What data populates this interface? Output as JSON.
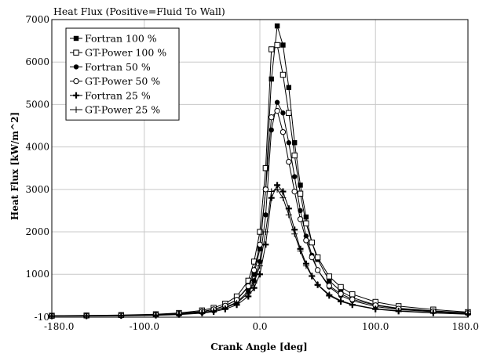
{
  "chart_data": {
    "type": "line",
    "title": "Heat Flux (Positive=Fluid To Wall)",
    "xlabel": "Crank Angle [deg]",
    "ylabel": "Heat Flux [kW/m^2]",
    "xlim": [
      -180,
      180
    ],
    "ylim": [
      -10,
      7000
    ],
    "x_ticks": [
      "-180.0",
      "-100.0",
      "0.0",
      "100.0",
      "180.0"
    ],
    "y_ticks": [
      "-10",
      "1000",
      "2000",
      "3000",
      "4000",
      "5000",
      "6000",
      "7000"
    ],
    "grid": true,
    "legend_position": "top-left",
    "series": [
      {
        "name": "Fortran 100 %",
        "marker": "filled-square",
        "x": [
          -180,
          -150,
          -120,
          -90,
          -70,
          -50,
          -40,
          -30,
          -20,
          -10,
          -5,
          0,
          5,
          10,
          15,
          20,
          25,
          30,
          35,
          40,
          45,
          50,
          60,
          70,
          80,
          100,
          120,
          150,
          180
        ],
        "y": [
          20,
          25,
          30,
          45,
          70,
          120,
          170,
          260,
          400,
          700,
          1000,
          1600,
          3000,
          5600,
          6850,
          6400,
          5400,
          4100,
          3100,
          2350,
          1750,
          1350,
          850,
          600,
          450,
          280,
          200,
          140,
          90
        ]
      },
      {
        "name": "GT-Power 100 %",
        "marker": "open-square",
        "x": [
          -180,
          -150,
          -120,
          -90,
          -70,
          -50,
          -40,
          -30,
          -20,
          -10,
          -5,
          0,
          5,
          10,
          15,
          20,
          25,
          30,
          35,
          40,
          45,
          50,
          60,
          70,
          80,
          100,
          120,
          150,
          180
        ],
        "y": [
          25,
          30,
          40,
          60,
          90,
          150,
          210,
          310,
          480,
          850,
          1300,
          2000,
          3500,
          6300,
          6400,
          5700,
          4800,
          3800,
          2900,
          2200,
          1750,
          1400,
          950,
          700,
          530,
          350,
          250,
          170,
          110
        ]
      },
      {
        "name": "Fortran 50 %",
        "marker": "filled-circle",
        "x": [
          -180,
          -150,
          -120,
          -90,
          -70,
          -50,
          -40,
          -30,
          -20,
          -10,
          -5,
          0,
          5,
          10,
          15,
          20,
          25,
          30,
          35,
          40,
          45,
          50,
          60,
          70,
          80,
          100,
          120,
          150,
          180
        ],
        "y": [
          18,
          22,
          28,
          40,
          60,
          100,
          140,
          220,
          340,
          600,
          850,
          1300,
          2400,
          4400,
          5050,
          4800,
          4100,
          3300,
          2500,
          1900,
          1450,
          1100,
          700,
          500,
          380,
          240,
          170,
          120,
          80
        ]
      },
      {
        "name": "GT-Power  50 %",
        "marker": "open-circle",
        "x": [
          -180,
          -150,
          -120,
          -90,
          -70,
          -50,
          -40,
          -30,
          -20,
          -10,
          -5,
          0,
          5,
          10,
          15,
          20,
          25,
          30,
          35,
          40,
          45,
          50,
          60,
          70,
          80,
          100,
          120,
          150,
          180
        ],
        "y": [
          22,
          27,
          35,
          50,
          75,
          125,
          175,
          260,
          400,
          720,
          1100,
          1700,
          3000,
          4700,
          4850,
          4350,
          3650,
          2950,
          2300,
          1800,
          1400,
          1100,
          730,
          540,
          410,
          270,
          190,
          130,
          90
        ]
      },
      {
        "name": "Fortran 25 %",
        "marker": "filled-plus",
        "x": [
          -180,
          -150,
          -120,
          -90,
          -70,
          -50,
          -40,
          -30,
          -20,
          -10,
          -5,
          0,
          5,
          10,
          15,
          20,
          25,
          30,
          35,
          40,
          45,
          50,
          60,
          70,
          80,
          100,
          120,
          150,
          180
        ],
        "y": [
          15,
          18,
          24,
          34,
          50,
          85,
          120,
          180,
          280,
          480,
          680,
          1000,
          1700,
          2800,
          3100,
          2950,
          2550,
          2050,
          1600,
          1250,
          960,
          750,
          500,
          360,
          280,
          180,
          130,
          90,
          60
        ]
      },
      {
        "name": "GT-Power 25 %",
        "marker": "open-plus",
        "x": [
          -180,
          -150,
          -120,
          -90,
          -70,
          -50,
          -40,
          -30,
          -20,
          -10,
          -5,
          0,
          5,
          10,
          15,
          20,
          25,
          30,
          35,
          40,
          45,
          50,
          60,
          70,
          80,
          100,
          120,
          150,
          180
        ],
        "y": [
          18,
          22,
          29,
          40,
          60,
          100,
          140,
          210,
          320,
          560,
          800,
          1200,
          2000,
          2950,
          3000,
          2800,
          2400,
          1950,
          1550,
          1200,
          950,
          760,
          520,
          380,
          290,
          190,
          140,
          95,
          65
        ]
      }
    ]
  }
}
